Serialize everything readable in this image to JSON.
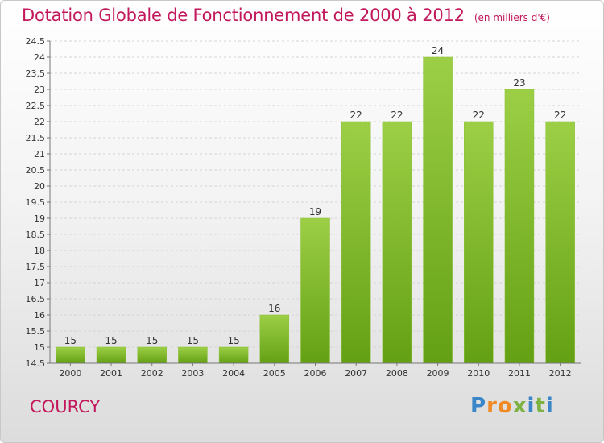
{
  "title": "Dotation Globale de Fonctionnement de 2000 à 2012",
  "unit": "(en milliers d'€)",
  "location": "COURCY",
  "logo": "Proxiti",
  "colors": {
    "bar_top": "#9ccf45",
    "bar_bottom": "#64a014",
    "title": "#c2185b"
  },
  "chart_data": {
    "type": "bar",
    "title": "Dotation Globale de Fonctionnement de 2000 à 2012",
    "xlabel": "",
    "ylabel": "",
    "categories": [
      "2000",
      "2001",
      "2002",
      "2003",
      "2004",
      "2005",
      "2006",
      "2007",
      "2008",
      "2009",
      "2010",
      "2011",
      "2012"
    ],
    "values": [
      15,
      15,
      15,
      15,
      15,
      16,
      19,
      22,
      22,
      24,
      22,
      23,
      22
    ],
    "ylim": [
      14.5,
      24.5
    ],
    "yticks": [
      "14.5",
      "15",
      "15.5",
      "16",
      "16.5",
      "17",
      "17.5",
      "18",
      "18.5",
      "19",
      "19.5",
      "20",
      "20.5",
      "21",
      "21.5",
      "22",
      "22.5",
      "23",
      "23.5",
      "24",
      "24.5"
    ],
    "grid": true,
    "legend": "none"
  }
}
